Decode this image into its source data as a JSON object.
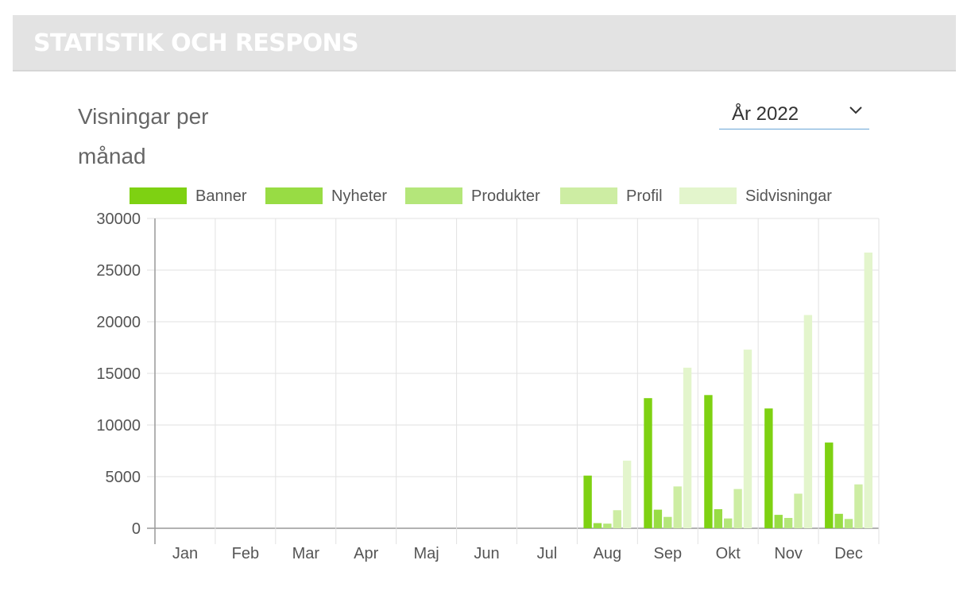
{
  "header": {
    "title": "STATISTIK OCH RESPONS"
  },
  "chart_title": "Visningar per månad",
  "year_select": {
    "value": "År 2022",
    "icon": "chevron-down-icon"
  },
  "chart_data": {
    "type": "bar",
    "title": "Visningar per månad",
    "xlabel": "",
    "ylabel": "",
    "ylim": [
      0,
      30000
    ],
    "yticks": [
      0,
      5000,
      10000,
      15000,
      20000,
      25000,
      30000
    ],
    "grid": true,
    "legend_position": "top",
    "categories": [
      "Jan",
      "Feb",
      "Mar",
      "Apr",
      "Maj",
      "Jun",
      "Jul",
      "Aug",
      "Sep",
      "Okt",
      "Nov",
      "Dec"
    ],
    "series": [
      {
        "name": "Banner",
        "color": "#7ed112",
        "values": [
          0,
          0,
          0,
          0,
          0,
          0,
          0,
          5100,
          12600,
          12900,
          11600,
          8300
        ]
      },
      {
        "name": "Nyheter",
        "color": "#98dc44",
        "values": [
          0,
          0,
          0,
          0,
          0,
          0,
          0,
          500,
          1800,
          1850,
          1300,
          1400
        ]
      },
      {
        "name": "Produkter",
        "color": "#b4e67a",
        "values": [
          0,
          0,
          0,
          0,
          0,
          0,
          0,
          450,
          1100,
          950,
          1000,
          900
        ]
      },
      {
        "name": "Profil",
        "color": "#cdeda3",
        "values": [
          0,
          0,
          0,
          0,
          0,
          0,
          0,
          1750,
          4050,
          3800,
          3350,
          4250
        ]
      },
      {
        "name": "Sidvisningar",
        "color": "#e3f5cc",
        "values": [
          0,
          0,
          0,
          0,
          0,
          0,
          0,
          6550,
          15550,
          17300,
          20650,
          26700
        ]
      }
    ]
  }
}
